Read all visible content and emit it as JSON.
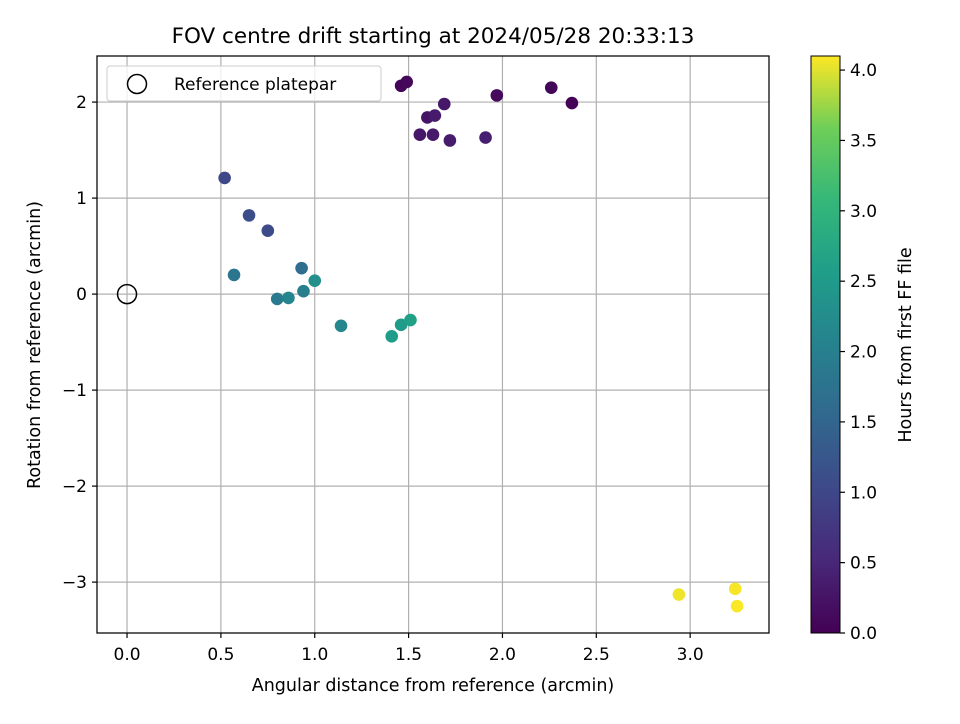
{
  "chart_data": {
    "type": "scatter",
    "title": "FOV centre drift starting at 2024/05/28 20:33:13",
    "xlabel": "Angular distance from reference (arcmin)",
    "ylabel": "Rotation from reference (arcmin)",
    "xlim": [
      -0.16,
      3.42
    ],
    "ylim": [
      -3.53,
      2.48
    ],
    "x_ticks": [
      0.0,
      0.5,
      1.0,
      1.5,
      2.0,
      2.5,
      3.0
    ],
    "x_tick_labels": [
      "0.0",
      "0.5",
      "1.0",
      "1.5",
      "2.0",
      "2.5",
      "3.0"
    ],
    "y_ticks": [
      -3,
      -2,
      -1,
      0,
      1,
      2
    ],
    "y_tick_labels": [
      "−3",
      "−2",
      "−1",
      "0",
      "1",
      "2"
    ],
    "grid": true,
    "legend": {
      "placement": "upper-left",
      "entries": [
        {
          "label": "Reference platepar",
          "marker": "open-circle",
          "x": 0,
          "y": 0
        }
      ]
    },
    "colorbar": {
      "label": "Hours from first FF file",
      "colormap": "viridis",
      "range": [
        0.0,
        4.1
      ],
      "ticks": [
        0.0,
        0.5,
        1.0,
        1.5,
        2.0,
        2.5,
        3.0,
        3.5,
        4.0
      ],
      "tick_labels": [
        "0.0",
        "0.5",
        "1.0",
        "1.5",
        "2.0",
        "2.5",
        "3.0",
        "3.5",
        "4.0"
      ]
    },
    "points": [
      {
        "x": 1.46,
        "y": 2.17,
        "hours": 0.05
      },
      {
        "x": 1.49,
        "y": 2.21,
        "hours": 0.08
      },
      {
        "x": 2.26,
        "y": 2.15,
        "hours": 0.06
      },
      {
        "x": 2.37,
        "y": 1.99,
        "hours": 0.03
      },
      {
        "x": 1.97,
        "y": 2.07,
        "hours": 0.12
      },
      {
        "x": 1.69,
        "y": 1.98,
        "hours": 0.3
      },
      {
        "x": 1.6,
        "y": 1.84,
        "hours": 0.25
      },
      {
        "x": 1.64,
        "y": 1.86,
        "hours": 0.33
      },
      {
        "x": 1.56,
        "y": 1.66,
        "hours": 0.28
      },
      {
        "x": 1.63,
        "y": 1.66,
        "hours": 0.32
      },
      {
        "x": 1.72,
        "y": 1.6,
        "hours": 0.36
      },
      {
        "x": 1.91,
        "y": 1.63,
        "hours": 0.4
      },
      {
        "x": 0.52,
        "y": 1.21,
        "hours": 1.0
      },
      {
        "x": 0.65,
        "y": 0.82,
        "hours": 1.1
      },
      {
        "x": 0.75,
        "y": 0.66,
        "hours": 1.05
      },
      {
        "x": 0.57,
        "y": 0.2,
        "hours": 1.8
      },
      {
        "x": 0.93,
        "y": 0.27,
        "hours": 1.65
      },
      {
        "x": 0.8,
        "y": -0.05,
        "hours": 1.9
      },
      {
        "x": 0.86,
        "y": -0.04,
        "hours": 2.1
      },
      {
        "x": 0.94,
        "y": 0.03,
        "hours": 2.0
      },
      {
        "x": 1.0,
        "y": 0.14,
        "hours": 2.3
      },
      {
        "x": 1.14,
        "y": -0.33,
        "hours": 2.15
      },
      {
        "x": 1.41,
        "y": -0.44,
        "hours": 2.55
      },
      {
        "x": 1.46,
        "y": -0.32,
        "hours": 2.5
      },
      {
        "x": 1.51,
        "y": -0.27,
        "hours": 2.6
      },
      {
        "x": 2.94,
        "y": -3.13,
        "hours": 4.05
      },
      {
        "x": 3.24,
        "y": -3.07,
        "hours": 4.08
      },
      {
        "x": 3.25,
        "y": -3.25,
        "hours": 4.09
      }
    ]
  }
}
